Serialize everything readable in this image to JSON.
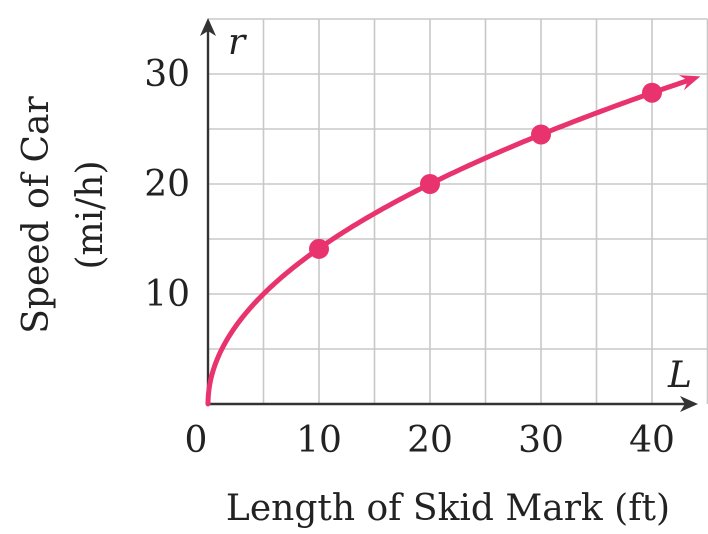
{
  "chart_data": {
    "type": "line",
    "xlabel": "Length of Skid Mark (ft)",
    "ylabel_line1": "Speed of Car",
    "ylabel_line2": "(mi/h)",
    "x_var": "L",
    "y_var": "r",
    "x_ticks": [
      "0",
      "10",
      "20",
      "30",
      "40"
    ],
    "y_ticks": [
      "10",
      "20",
      "30"
    ],
    "xlim": [
      0,
      45
    ],
    "ylim": [
      0,
      35
    ],
    "grid": true,
    "color": "#e8336e",
    "formula": "r = sqrt(20 * L)",
    "series": [
      {
        "x": [
          0,
          10,
          20,
          30,
          40
        ],
        "y": [
          0,
          14.1,
          20,
          24.5,
          28.3
        ]
      }
    ],
    "points": [
      {
        "x": 10,
        "y": 14.1
      },
      {
        "x": 20,
        "y": 20
      },
      {
        "x": 30,
        "y": 24.5
      },
      {
        "x": 40,
        "y": 28.3
      }
    ]
  }
}
